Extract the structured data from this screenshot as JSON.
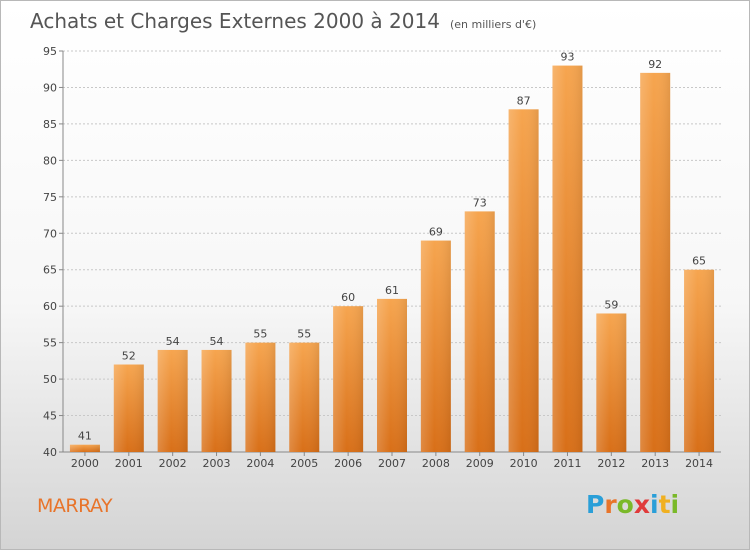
{
  "header": {
    "title": "Achats et Charges Externes 2000 à 2014",
    "subtitle": "(en milliers d'€)"
  },
  "footer": {
    "commune": "MARRAY",
    "logo_letters": [
      "P",
      "r",
      "o",
      "x",
      "i",
      "t",
      "i"
    ],
    "logo_colors": [
      "#2a9fd8",
      "#e8742a",
      "#7ab929",
      "#e03a3a",
      "#2a9fd8",
      "#f0b020",
      "#7ab929"
    ]
  },
  "chart_data": {
    "type": "bar",
    "title": "Achats et Charges Externes 2000 à 2014",
    "subtitle": "(en milliers d'€)",
    "xlabel": "",
    "ylabel": "",
    "categories": [
      "2000",
      "2001",
      "2002",
      "2003",
      "2004",
      "2005",
      "2006",
      "2007",
      "2008",
      "2009",
      "2010",
      "2011",
      "2012",
      "2013",
      "2014"
    ],
    "values": [
      41,
      52,
      54,
      54,
      55,
      55,
      60,
      61,
      69,
      73,
      87,
      93,
      59,
      92,
      65
    ],
    "ylim": [
      40,
      95
    ],
    "yticks": [
      40,
      45,
      50,
      55,
      60,
      65,
      70,
      75,
      80,
      85,
      90,
      95
    ],
    "grid": true,
    "colors": {
      "bar_top": "#f6a54f",
      "bar_bottom": "#d86f18",
      "grid": "#c8c8c8"
    }
  }
}
